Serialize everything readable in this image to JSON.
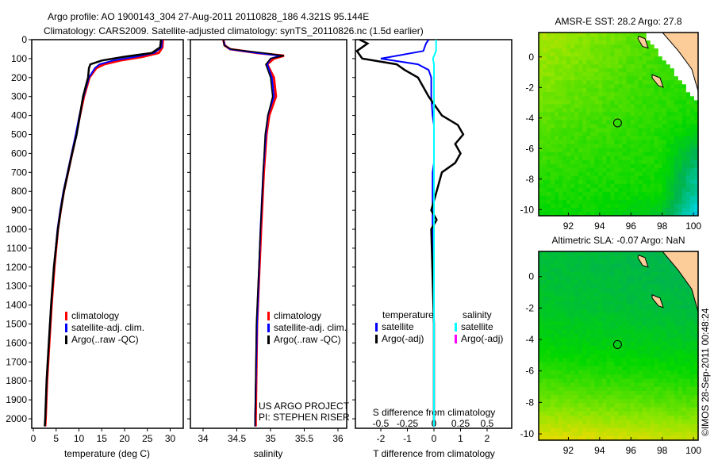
{
  "title_line1": "Argo profile: AO 1900143_304 27-Aug-2011 20110828_186 4.321S 95.144E",
  "title_line2": "Climatology: CARS2009. Satellite-adjusted climatology: synTS_20110826.nc (1.5d earlier)",
  "credit": "©IMOS 28-Sep-2011 00:48:24",
  "colors": {
    "climatology": "#ff0000",
    "satellite": "#0000ff",
    "argo": "#000000",
    "sal_satellite": "#00ffff",
    "sal_argo": "#ff00ff"
  },
  "chart_data": [
    {
      "type": "line",
      "name": "temperature",
      "xlabel": "temperature (deg C)",
      "ylabel": "",
      "xlim": [
        -1,
        31
      ],
      "ylim": [
        2050,
        0
      ],
      "xticks": [
        0,
        5,
        10,
        15,
        20,
        25,
        30
      ],
      "yticks": [
        0,
        100,
        200,
        300,
        400,
        500,
        600,
        700,
        800,
        900,
        1000,
        1100,
        1200,
        1300,
        1400,
        1500,
        1600,
        1700,
        1800,
        1900,
        2000
      ],
      "legend": [
        "climatology",
        "satellite-adj. clim.",
        "Argo(..raw -QC)"
      ],
      "depth": [
        0,
        40,
        70,
        90,
        110,
        130,
        150,
        200,
        300,
        400,
        500,
        600,
        700,
        800,
        900,
        1000,
        1200,
        1400,
        1600,
        1800,
        2000,
        2040
      ],
      "series": [
        {
          "name": "climatology",
          "values": [
            28.4,
            28.3,
            27.5,
            24,
            19,
            15.5,
            13.8,
            12.3,
            11.1,
            10.2,
            9.4,
            8.5,
            7.6,
            6.7,
            6,
            5.4,
            4.6,
            4,
            3.5,
            3,
            2.7,
            2.6
          ]
        },
        {
          "name": "satellite-adj. clim.",
          "values": [
            28.2,
            28.1,
            26.5,
            22.5,
            17.5,
            14.5,
            13.5,
            12.2,
            11,
            10.1,
            9.3,
            8.4,
            7.5,
            6.6,
            5.9,
            5.3,
            4.5,
            3.9,
            3.4,
            2.9,
            2.6,
            2.5
          ]
        },
        {
          "name": "Argo(..raw -QC)",
          "values": [
            28.0,
            27.8,
            26,
            20,
            15,
            12.5,
            12.2,
            12,
            10.9,
            10.2,
            9.5,
            8.5,
            7.6,
            6.7,
            6,
            5.4,
            4.5,
            3.9,
            3.4,
            2.9,
            2.6,
            2.5
          ]
        }
      ]
    },
    {
      "type": "line",
      "name": "salinity",
      "xlabel": "salinity",
      "xlim": [
        33.8,
        36.1
      ],
      "ylim": [
        2050,
        0
      ],
      "xticks": [
        34,
        34.5,
        35,
        35.5,
        36
      ],
      "legend": [
        "climatology",
        "satellite-adj. clim.",
        "Argo(..raw -QC)"
      ],
      "annotation": [
        "US ARGO PROJECT",
        "PI: STEPHEN RISER"
      ],
      "depth": [
        0,
        30,
        50,
        70,
        85,
        100,
        130,
        200,
        300,
        400,
        500,
        700,
        1000,
        1500,
        2000,
        2040
      ],
      "series": [
        {
          "name": "climatology",
          "values": [
            34.3,
            34.32,
            34.4,
            34.8,
            35.2,
            35.05,
            34.95,
            35.05,
            35.08,
            34.98,
            34.94,
            34.9,
            34.86,
            34.8,
            34.78,
            34.78
          ]
        },
        {
          "name": "satellite-adj. clim.",
          "values": [
            34.3,
            34.32,
            34.4,
            34.8,
            35.15,
            35.0,
            34.95,
            35.02,
            35.05,
            34.96,
            34.93,
            34.89,
            34.85,
            34.8,
            34.77,
            34.77
          ]
        },
        {
          "name": "Argo(..raw -QC)",
          "values": [
            34.3,
            34.31,
            34.42,
            34.9,
            35.2,
            35.0,
            34.93,
            35.0,
            35.03,
            34.96,
            34.92,
            34.89,
            34.85,
            34.79,
            34.77,
            34.77
          ]
        }
      ]
    },
    {
      "type": "line",
      "name": "difference",
      "xlabel": "T difference from climatology",
      "x2label": "S difference from climatology",
      "xlim": [
        -3,
        3
      ],
      "x2lim": [
        -0.6,
        0.6
      ],
      "ylim": [
        2050,
        0
      ],
      "xticks": [
        -2,
        -1,
        0,
        1,
        2
      ],
      "x2ticks": [
        -0.5,
        -0.25,
        0,
        0.25,
        0.5
      ],
      "legend_headers": [
        "temperature",
        "salinity"
      ],
      "legend": [
        "satellite",
        "Argo(-adj)",
        "satellite",
        "Argo(-adj)"
      ],
      "depth": [
        0,
        20,
        60,
        100,
        130,
        160,
        200,
        300,
        400,
        450,
        500,
        550,
        600,
        650,
        700,
        800,
        900,
        950,
        1000,
        1500,
        2000,
        2040
      ],
      "series": [
        {
          "name": "T satellite",
          "values": [
            -0.2,
            -0.3,
            -0.4,
            -2,
            -0.6,
            -0.2,
            -0.1,
            -0.1,
            -0.05,
            0,
            0,
            0,
            0,
            0,
            -0.05,
            -0.05,
            -0.05,
            -0.05,
            -0.05,
            0,
            0,
            0
          ]
        },
        {
          "name": "T Argo(-adj)",
          "values": [
            -2.8,
            -2.5,
            -2.9,
            -2.7,
            -1.4,
            -1.1,
            -0.6,
            -0.2,
            0.3,
            0.9,
            1.1,
            0.8,
            1.0,
            0.8,
            0.3,
            0.1,
            -0.1,
            0.1,
            -0.1,
            0,
            0,
            0
          ]
        },
        {
          "name": "S satellite",
          "values": [
            0.02,
            0.02,
            0.02,
            -0.01,
            0,
            0,
            0,
            0,
            0,
            0,
            0,
            0,
            0,
            0,
            0,
            0,
            0,
            0,
            0,
            0,
            0,
            0
          ]
        }
      ]
    },
    {
      "type": "heatmap",
      "name": "sst_map",
      "title": "AMSR-E SST: 28.2 Argo: 27.8",
      "xticks": [
        92,
        94,
        96,
        98,
        100
      ],
      "yticks": [
        0,
        -2,
        -4,
        -6,
        -8,
        -10
      ],
      "xlim": [
        90.1,
        100.3
      ],
      "ylim": [
        -10.4,
        1.6
      ],
      "marker": [
        95.144,
        -4.321
      ]
    },
    {
      "type": "heatmap",
      "name": "sla_map",
      "title": "Altimetric SLA: -0.07 Argo: NaN",
      "xticks": [
        92,
        94,
        96,
        98,
        100
      ],
      "yticks": [
        0,
        -2,
        -4,
        -6,
        -8,
        -10
      ],
      "xlim": [
        90.1,
        100.3
      ],
      "ylim": [
        -10.4,
        1.6
      ],
      "marker": [
        95.144,
        -4.321
      ]
    }
  ]
}
